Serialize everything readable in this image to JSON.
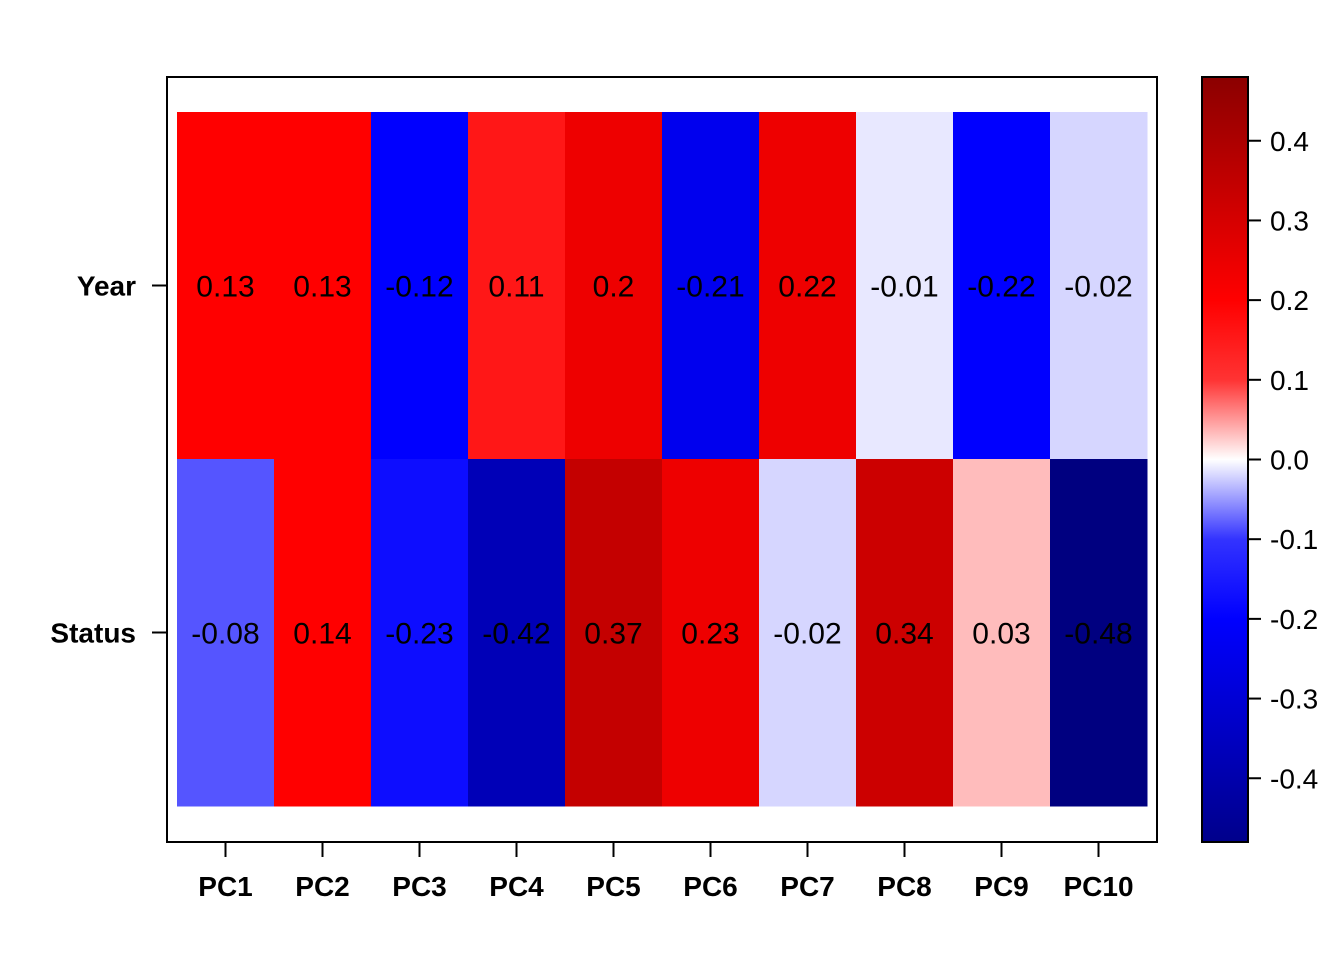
{
  "chart_data": {
    "type": "heatmap",
    "title": "",
    "xlabel": "",
    "ylabel": "",
    "columns": [
      "PC1",
      "PC2",
      "PC3",
      "PC4",
      "PC5",
      "PC6",
      "PC7",
      "PC8",
      "PC9",
      "PC10"
    ],
    "rows": [
      "Year",
      "Status"
    ],
    "values": [
      [
        0.13,
        0.13,
        -0.12,
        0.11,
        0.2,
        -0.21,
        0.22,
        -0.01,
        -0.22,
        -0.02
      ],
      [
        -0.08,
        0.14,
        -0.23,
        -0.42,
        0.37,
        0.23,
        -0.02,
        0.34,
        0.03,
        -0.48
      ]
    ],
    "cell_labels": [
      [
        "0.13",
        "0.13",
        "-0.12",
        "0.11",
        "0.2",
        "-0.21",
        "0.22",
        "-0.01",
        "-0.22",
        "-0.02"
      ],
      [
        "-0.08",
        "0.14",
        "-0.23",
        "-0.42",
        "0.37",
        "0.23",
        "-0.02",
        "0.34",
        "0.03",
        "-0.48"
      ]
    ],
    "cell_colors": [
      [
        "#ff0000",
        "#ff0000",
        "#0000ff",
        "#ff1717",
        "#ee0000",
        "#0000ee",
        "#ee0000",
        "#e8e8ff",
        "#0000ff",
        "#d6d6ff"
      ],
      [
        "#5555ff",
        "#ff0000",
        "#0d0dff",
        "#0000b7",
        "#c40000",
        "#ee0000",
        "#d6d6ff",
        "#cc0000",
        "#ffbcbc",
        "#000080"
      ]
    ],
    "colorbar": {
      "range": [
        -0.48,
        0.48
      ],
      "ticks": [
        {
          "value": 0.4,
          "label": "0.4"
        },
        {
          "value": 0.3,
          "label": "0.3"
        },
        {
          "value": 0.2,
          "label": "0.2"
        },
        {
          "value": 0.1,
          "label": "0.1"
        },
        {
          "value": 0.0,
          "label": "0.0"
        },
        {
          "value": -0.1,
          "label": "-0.1"
        },
        {
          "value": -0.2,
          "label": "-0.2"
        },
        {
          "value": -0.3,
          "label": "-0.3"
        },
        {
          "value": -0.4,
          "label": "-0.4"
        }
      ],
      "stops": [
        {
          "value": -0.48,
          "color": "#00008b"
        },
        {
          "value": -0.2,
          "color": "#0000ff"
        },
        {
          "value": -0.1,
          "color": "#3333ff"
        },
        {
          "value": 0.0,
          "color": "#ffffff"
        },
        {
          "value": 0.1,
          "color": "#ff3333"
        },
        {
          "value": 0.2,
          "color": "#ff0000"
        },
        {
          "value": 0.48,
          "color": "#8b0000"
        }
      ]
    },
    "grid": false,
    "legend": "right"
  }
}
